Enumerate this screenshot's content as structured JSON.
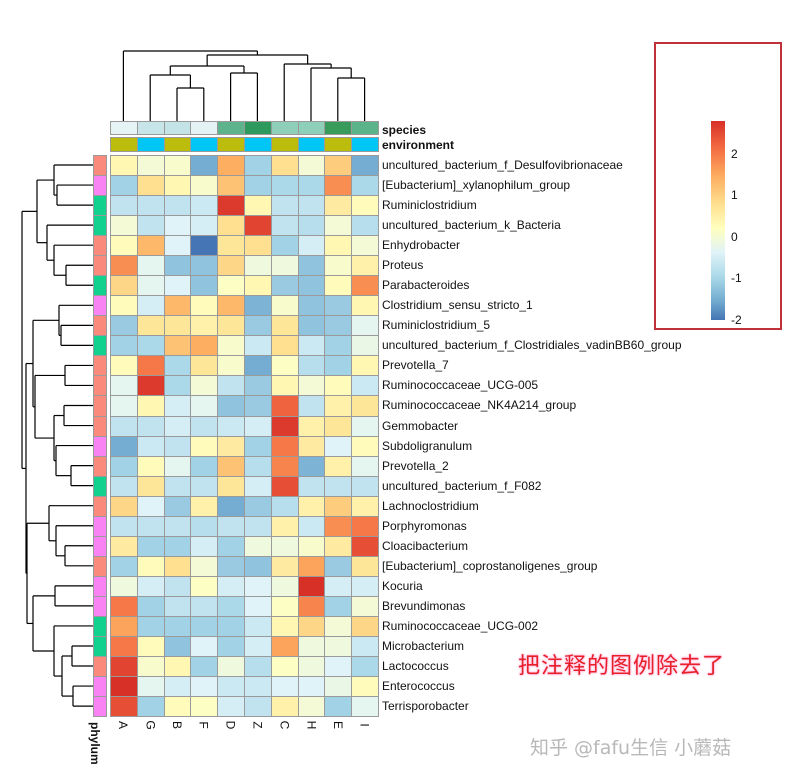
{
  "chart_data": {
    "type": "heatmap",
    "title": "",
    "columns": [
      "A",
      "G",
      "B",
      "F",
      "D",
      "Z",
      "C",
      "H",
      "E",
      "I"
    ],
    "rows": [
      "uncultured_bacterium_f_Desulfovibrionaceae",
      "[Eubacterium]_xylanophilum_group",
      "Ruminiclostridium",
      "uncultured_bacterium_k_Bacteria",
      "Enhydrobacter",
      "Proteus",
      "Parabacteroides",
      "Clostridium_sensu_stricto_1",
      "Ruminiclostridium_5",
      "uncultured_bacterium_f_Clostridiales_vadinBB60_group",
      "Prevotella_7",
      "Ruminococcaceae_UCG-005",
      "Ruminococcaceae_NK4A214_group",
      "Gemmobacter",
      "Subdoligranulum",
      "Prevotella_2",
      "uncultured_bacterium_f_F082",
      "Lachnoclostridium",
      "Porphyromonas",
      "Cloacibacterium",
      "[Eubacterium]_coprostanoligenes_group",
      "Kocuria",
      "Brevundimonas",
      "Ruminococcaceae_UCG-002",
      "Microbacterium",
      "Lactococcus",
      "Enterococcus",
      "Terrisporobacter"
    ],
    "values": [
      [
        0.6,
        0.2,
        0.3,
        -1.3,
        1.5,
        -0.8,
        1.0,
        0.2,
        1.2,
        -1.3
      ],
      [
        -0.8,
        1.0,
        0.6,
        0.3,
        1.3,
        -0.8,
        -0.7,
        -0.7,
        1.8,
        -0.7
      ],
      [
        -0.5,
        -0.5,
        -0.5,
        -0.4,
        2.6,
        0.6,
        -0.5,
        -0.5,
        0.8,
        0.5
      ],
      [
        0.2,
        -0.5,
        -0.2,
        -0.3,
        1.0,
        2.5,
        -0.5,
        -0.6,
        0.2,
        -0.6
      ],
      [
        0.5,
        1.4,
        -0.2,
        -2.0,
        0.9,
        1.0,
        -0.8,
        -0.3,
        0.6,
        0.2
      ],
      [
        1.8,
        -0.1,
        -1.0,
        -1.0,
        1.1,
        0.1,
        0.1,
        -1.0,
        0.3,
        0.7
      ],
      [
        1.1,
        -0.1,
        -0.2,
        -1.0,
        0.4,
        0.6,
        -0.9,
        -1.0,
        0.5,
        1.8
      ],
      [
        0.5,
        -0.3,
        1.4,
        0.5,
        1.4,
        -1.2,
        0.3,
        -1.0,
        -0.9,
        0.6
      ],
      [
        -0.9,
        0.9,
        0.9,
        0.7,
        0.9,
        -0.9,
        0.9,
        -1.0,
        -0.9,
        -0.1
      ],
      [
        -0.8,
        -0.7,
        1.3,
        1.5,
        0.3,
        -0.4,
        1.0,
        -0.4,
        -0.8,
        0.0
      ],
      [
        0.5,
        2.0,
        -0.7,
        0.9,
        0.3,
        -1.3,
        0.4,
        -0.6,
        -0.8,
        0.6
      ],
      [
        -0.1,
        2.6,
        -0.7,
        0.2,
        -0.5,
        -0.9,
        0.6,
        0.2,
        0.5,
        -0.4
      ],
      [
        -0.1,
        0.6,
        -0.3,
        -0.1,
        -1.0,
        -0.9,
        2.2,
        -0.5,
        0.7,
        0.9
      ],
      [
        -0.5,
        -0.5,
        -0.3,
        -0.5,
        -0.4,
        -0.3,
        2.6,
        0.7,
        0.9,
        -0.1
      ],
      [
        -1.3,
        -0.4,
        -0.5,
        0.5,
        0.8,
        -0.8,
        2.0,
        0.8,
        -0.2,
        0.5
      ],
      [
        -0.8,
        0.5,
        -0.1,
        -0.8,
        1.3,
        -0.6,
        1.9,
        -1.2,
        0.7,
        -0.1
      ],
      [
        -0.5,
        0.9,
        -0.5,
        -0.5,
        0.9,
        -0.3,
        2.4,
        -0.5,
        -0.5,
        -0.5
      ],
      [
        1.1,
        -0.2,
        -0.9,
        0.7,
        -1.3,
        -0.9,
        -0.6,
        0.7,
        1.2,
        0.7
      ],
      [
        -0.5,
        -0.5,
        -0.5,
        -0.6,
        -0.5,
        -0.5,
        0.7,
        -0.4,
        1.8,
        2.0
      ],
      [
        0.8,
        -0.8,
        -0.8,
        -0.3,
        -0.8,
        0.1,
        0.1,
        0.3,
        0.8,
        2.4
      ],
      [
        -0.8,
        0.5,
        1.0,
        0.2,
        -0.9,
        -1.0,
        0.8,
        1.6,
        -0.9,
        0.9
      ],
      [
        0.1,
        -0.3,
        -0.5,
        0.4,
        -0.3,
        -0.2,
        0.1,
        2.7,
        -0.3,
        -0.3
      ],
      [
        2.0,
        -0.8,
        -0.5,
        -0.5,
        -0.7,
        -0.2,
        0.4,
        1.9,
        -0.8,
        0.2
      ],
      [
        1.6,
        -0.8,
        -0.8,
        -0.8,
        -0.8,
        -0.4,
        0.6,
        1.1,
        0.2,
        1.1
      ],
      [
        2.0,
        0.5,
        -1.0,
        -0.2,
        -0.8,
        -0.3,
        1.6,
        0.1,
        0.1,
        -0.4
      ],
      [
        2.5,
        0.3,
        0.6,
        -0.8,
        0.1,
        -0.6,
        0.4,
        0.1,
        -0.2,
        -0.7
      ],
      [
        2.7,
        -0.1,
        -0.3,
        -0.2,
        -0.4,
        -0.4,
        -0.2,
        -0.2,
        0.0,
        0.5
      ],
      [
        2.4,
        -0.8,
        0.5,
        0.4,
        -0.3,
        -0.5,
        0.7,
        0.2,
        -0.8,
        -0.1
      ]
    ],
    "color_scale": {
      "min": -2,
      "max": 2.7,
      "ticks": [
        -2,
        -1,
        0,
        1,
        2
      ],
      "colors": [
        "#4575b4",
        "#74add1",
        "#abd9e9",
        "#e0f3f8",
        "#ffffbf",
        "#fee090",
        "#fdae61",
        "#f46d43",
        "#d73027"
      ]
    },
    "column_annotations": {
      "species": {
        "label": "species",
        "colors": [
          "#e6f3f5",
          "#c7e5e8",
          "#c4e3e6",
          "#e4f2f4",
          "#5db38c",
          "#2d995d",
          "#8fcfb9",
          "#8dcfb8",
          "#389a5b",
          "#5bb38a"
        ]
      },
      "environment": {
        "label": "environment",
        "colors": [
          "#bcbc0c",
          "#00c6f6",
          "#bcbc0c",
          "#00c6f6",
          "#bcbc0c",
          "#00c6f6",
          "#bcbc0c",
          "#00c6f6",
          "#bcbc0c",
          "#00c6f6"
        ]
      }
    },
    "row_annotation": {
      "label": "phylum",
      "colors": [
        "#f98a7c",
        "#fa83f4",
        "#12d18e",
        "#12d18e",
        "#f98a7c",
        "#f98a7c",
        "#12d18e",
        "#fa83f4",
        "#f98a7c",
        "#12d18e",
        "#f98a7c",
        "#f98a7c",
        "#f98a7c",
        "#f98a7c",
        "#fa83f4",
        "#f98a7c",
        "#12d18e",
        "#f98a7c",
        "#fa83f4",
        "#fa83f4",
        "#f98a7c",
        "#fa83f4",
        "#fa83f4",
        "#12d18e",
        "#12d18e",
        "#f98a7c",
        "#fa83f4",
        "#fa83f4"
      ]
    },
    "legend": {
      "ticks": [
        "2",
        "1",
        "0",
        "-1",
        "-2"
      ]
    }
  },
  "annotation_note": "把注释的图例除去了",
  "watermark": "知乎 @fafu生信 小蘑菇"
}
